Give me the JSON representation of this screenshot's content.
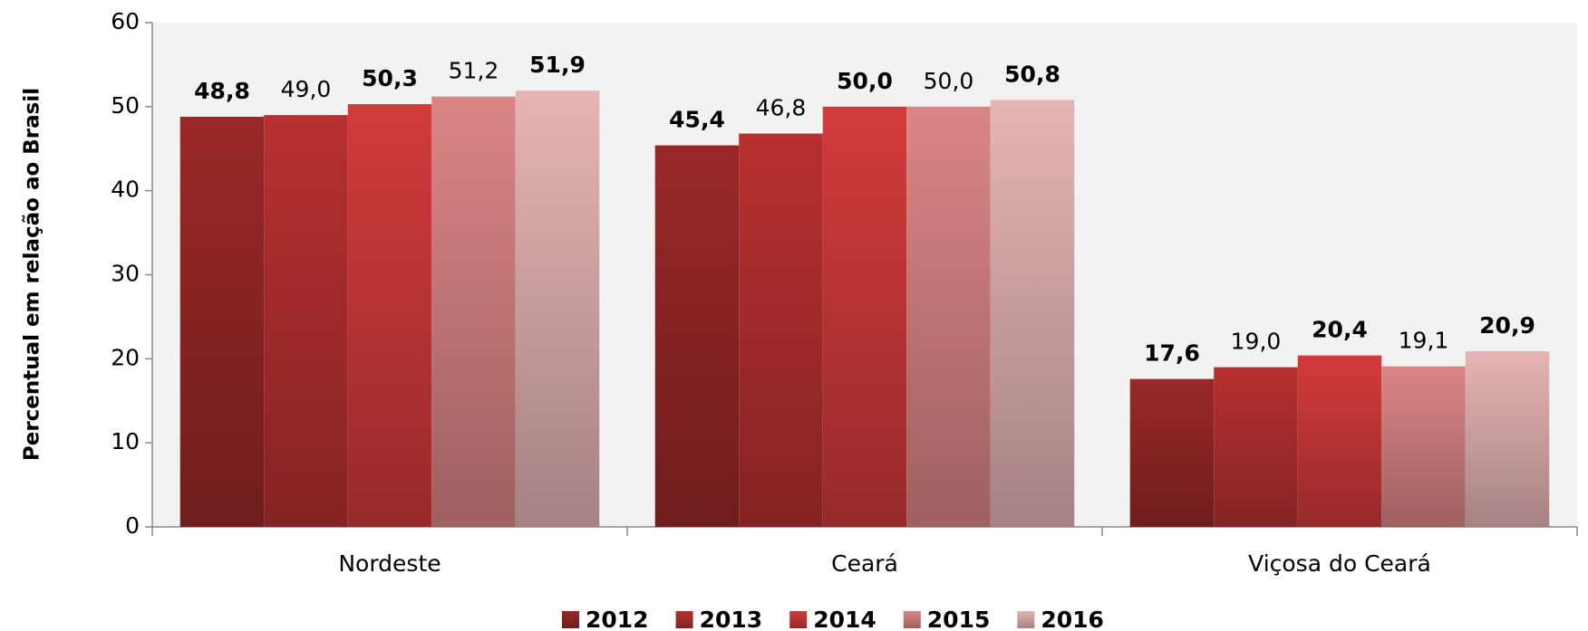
{
  "chart_data": {
    "type": "bar",
    "y_label": "Percentual em relação ao Brasil",
    "categories": [
      "Nordeste",
      "Ceará",
      "Viçosa do Ceará"
    ],
    "series": [
      {
        "name": "2012",
        "color": "#9a2828",
        "values": [
          48.8,
          45.4,
          17.6
        ],
        "value_labels": [
          "48,8",
          "45,4",
          "17,6"
        ]
      },
      {
        "name": "2013",
        "color": "#b83030",
        "values": [
          49.0,
          46.8,
          19.0
        ],
        "value_labels": [
          "49,0",
          "46,8",
          "19,0"
        ]
      },
      {
        "name": "2014",
        "color": "#d23b3b",
        "values": [
          50.3,
          50.0,
          20.4
        ],
        "value_labels": [
          "50,3",
          "50,0",
          "20,4"
        ]
      },
      {
        "name": "2015",
        "color": "#db8585",
        "values": [
          51.2,
          50.0,
          19.1
        ],
        "value_labels": [
          "51,2",
          "50,0",
          "19,1"
        ]
      },
      {
        "name": "2016",
        "color": "#e6b4b4",
        "values": [
          51.9,
          50.8,
          20.9
        ],
        "value_labels": [
          "51,9",
          "50,8",
          "20,9"
        ]
      }
    ],
    "ylim": [
      0,
      60
    ],
    "yticks": [
      0,
      10,
      20,
      30,
      40,
      50,
      60
    ]
  }
}
